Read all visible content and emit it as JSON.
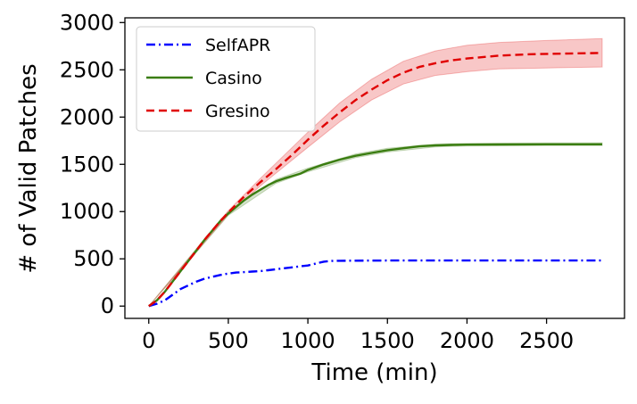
{
  "chart_data": {
    "type": "line",
    "xlabel": "Time (min)",
    "ylabel": "# of Valid Patches",
    "xlim": [
      -150,
      2990
    ],
    "ylim": [
      -130,
      3050
    ],
    "x_ticks": [
      0,
      500,
      1000,
      1500,
      2000,
      2500
    ],
    "y_ticks": [
      0,
      500,
      1000,
      1500,
      2000,
      2500,
      3000
    ],
    "grid": false,
    "legend_position": "top-left",
    "series": [
      {
        "name": "SelfAPR",
        "color": "#0000ff",
        "dash": "dashdot",
        "points": [
          [
            0,
            0
          ],
          [
            50,
            25
          ],
          [
            100,
            60
          ],
          [
            150,
            120
          ],
          [
            200,
            180
          ],
          [
            250,
            220
          ],
          [
            300,
            260
          ],
          [
            350,
            290
          ],
          [
            400,
            310
          ],
          [
            450,
            330
          ],
          [
            500,
            345
          ],
          [
            550,
            355
          ],
          [
            600,
            360
          ],
          [
            650,
            365
          ],
          [
            700,
            370
          ],
          [
            750,
            380
          ],
          [
            800,
            390
          ],
          [
            850,
            400
          ],
          [
            900,
            410
          ],
          [
            950,
            420
          ],
          [
            1000,
            430
          ],
          [
            1050,
            450
          ],
          [
            1100,
            470
          ],
          [
            1150,
            478
          ],
          [
            1200,
            480
          ],
          [
            1500,
            482
          ],
          [
            2000,
            482
          ],
          [
            2500,
            482
          ],
          [
            2850,
            482
          ]
        ],
        "band": []
      },
      {
        "name": "Casino",
        "color": "#3a7d10",
        "dash": "solid",
        "points": [
          [
            0,
            0
          ],
          [
            50,
            60
          ],
          [
            100,
            150
          ],
          [
            150,
            260
          ],
          [
            200,
            370
          ],
          [
            250,
            480
          ],
          [
            300,
            590
          ],
          [
            350,
            700
          ],
          [
            400,
            800
          ],
          [
            450,
            900
          ],
          [
            500,
            980
          ],
          [
            550,
            1050
          ],
          [
            600,
            1120
          ],
          [
            650,
            1180
          ],
          [
            700,
            1230
          ],
          [
            750,
            1280
          ],
          [
            800,
            1320
          ],
          [
            850,
            1350
          ],
          [
            900,
            1375
          ],
          [
            950,
            1400
          ],
          [
            1000,
            1440
          ],
          [
            1100,
            1500
          ],
          [
            1200,
            1550
          ],
          [
            1300,
            1590
          ],
          [
            1400,
            1620
          ],
          [
            1500,
            1650
          ],
          [
            1600,
            1670
          ],
          [
            1700,
            1690
          ],
          [
            1800,
            1700
          ],
          [
            1900,
            1705
          ],
          [
            2000,
            1708
          ],
          [
            2200,
            1710
          ],
          [
            2500,
            1712
          ],
          [
            2850,
            1712
          ]
        ],
        "band": [
          [
            0,
            0,
            0
          ],
          [
            300,
            570,
            610
          ],
          [
            500,
            960,
            1000
          ],
          [
            800,
            1300,
            1340
          ],
          [
            1000,
            1420,
            1460
          ],
          [
            1300,
            1570,
            1610
          ],
          [
            1500,
            1630,
            1670
          ],
          [
            1800,
            1685,
            1715
          ],
          [
            2000,
            1695,
            1722
          ],
          [
            2500,
            1698,
            1726
          ],
          [
            2850,
            1698,
            1728
          ]
        ]
      },
      {
        "name": "Gresino",
        "color": "#e00000",
        "dash": "dashed",
        "points": [
          [
            0,
            0
          ],
          [
            50,
            60
          ],
          [
            100,
            150
          ],
          [
            150,
            260
          ],
          [
            200,
            370
          ],
          [
            250,
            480
          ],
          [
            300,
            590
          ],
          [
            350,
            700
          ],
          [
            400,
            800
          ],
          [
            450,
            900
          ],
          [
            500,
            990
          ],
          [
            600,
            1160
          ],
          [
            700,
            1310
          ],
          [
            800,
            1450
          ],
          [
            900,
            1600
          ],
          [
            1000,
            1760
          ],
          [
            1100,
            1910
          ],
          [
            1200,
            2050
          ],
          [
            1300,
            2180
          ],
          [
            1400,
            2290
          ],
          [
            1500,
            2390
          ],
          [
            1600,
            2470
          ],
          [
            1700,
            2530
          ],
          [
            1800,
            2570
          ],
          [
            1900,
            2600
          ],
          [
            2000,
            2620
          ],
          [
            2200,
            2650
          ],
          [
            2400,
            2665
          ],
          [
            2600,
            2672
          ],
          [
            2850,
            2678
          ]
        ],
        "band": [
          [
            0,
            0,
            0
          ],
          [
            300,
            580,
            600
          ],
          [
            500,
            970,
            1010
          ],
          [
            700,
            1270,
            1350
          ],
          [
            1000,
            1680,
            1840
          ],
          [
            1200,
            1950,
            2150
          ],
          [
            1400,
            2180,
            2400
          ],
          [
            1600,
            2350,
            2590
          ],
          [
            1800,
            2440,
            2700
          ],
          [
            2000,
            2480,
            2760
          ],
          [
            2200,
            2510,
            2790
          ],
          [
            2500,
            2520,
            2810
          ],
          [
            2850,
            2530,
            2830
          ]
        ]
      }
    ]
  }
}
